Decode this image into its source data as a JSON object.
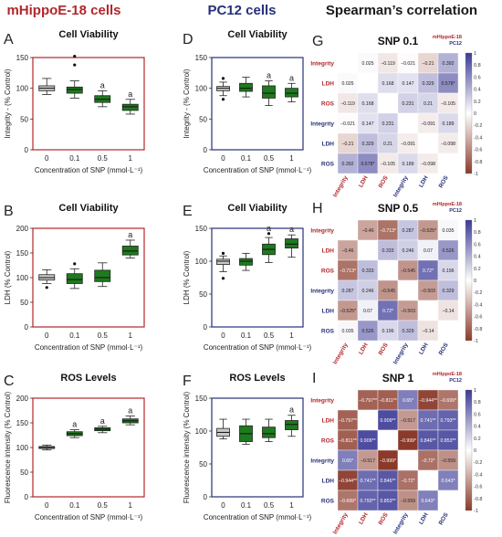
{
  "figure": {
    "col_titles": [
      {
        "text": "mHippoE-18 cells",
        "color": "#b3262b"
      },
      {
        "text": "PC12 cells",
        "color": "#26307a"
      },
      {
        "text": "Spearman’s correlation",
        "color": "#1a1a1a"
      }
    ]
  },
  "colors": {
    "mhippo": "#b3262b",
    "pc12": "#26307a",
    "control_box": "#c8c8c8",
    "treatment_box": "#1e7a1e",
    "heat_neg": "#8b3a2a",
    "heat_pos": "#3b3a96"
  },
  "chart_data": [
    {
      "type": "box",
      "panel": "A",
      "title": "Cell Viability",
      "ylabel": "Integrity - (% Control)",
      "xlabel": "Concentration of SNP (mmol·L⁻¹)",
      "categories": [
        "0",
        "0.1",
        "0.5",
        "1"
      ],
      "ylim": [
        0,
        150
      ],
      "yticks": [
        0,
        50,
        100,
        150
      ],
      "frame": "mhippo",
      "boxes": [
        {
          "min": 90,
          "q1": 96,
          "median": 100,
          "q3": 104,
          "max": 116,
          "outliers": []
        },
        {
          "min": 84,
          "q1": 92,
          "median": 98,
          "q3": 102,
          "max": 112,
          "outliers": [
            138,
            152
          ]
        },
        {
          "min": 70,
          "q1": 77,
          "median": 82,
          "q3": 88,
          "max": 96,
          "outliers": []
        },
        {
          "min": 58,
          "q1": 64,
          "median": 70,
          "q3": 74,
          "max": 82,
          "outliers": []
        }
      ],
      "annotations": [
        "",
        "",
        "a",
        "a"
      ]
    },
    {
      "type": "box",
      "panel": "D",
      "title": "Cell Viability",
      "ylabel": "Integrity - (% Control)",
      "xlabel": "Concentration of SNP (mmol·L⁻¹)",
      "categories": [
        "0",
        "0.1",
        "0.5",
        "1"
      ],
      "ylim": [
        0,
        150
      ],
      "yticks": [
        0,
        50,
        100,
        150
      ],
      "frame": "pc12",
      "boxes": [
        {
          "min": 88,
          "q1": 96,
          "median": 100,
          "q3": 103,
          "max": 110,
          "outliers": [
            82,
            116
          ]
        },
        {
          "min": 86,
          "q1": 95,
          "median": 100,
          "q3": 108,
          "max": 118,
          "outliers": []
        },
        {
          "min": 72,
          "q1": 84,
          "median": 92,
          "q3": 104,
          "max": 112,
          "outliers": []
        },
        {
          "min": 78,
          "q1": 86,
          "median": 92,
          "q3": 100,
          "max": 108,
          "outliers": []
        }
      ],
      "annotations": [
        "",
        "",
        "a",
        "a"
      ]
    },
    {
      "type": "box",
      "panel": "B",
      "title": "Cell Viability",
      "ylabel": "LDH (% Control)",
      "xlabel": "Concentration of SNP (mmol·L⁻¹)",
      "categories": [
        "0",
        "0.1",
        "0.5",
        "1"
      ],
      "ylim": [
        0,
        200
      ],
      "yticks": [
        0,
        50,
        100,
        150,
        200
      ],
      "frame": "mhippo",
      "boxes": [
        {
          "min": 88,
          "q1": 95,
          "median": 100,
          "q3": 106,
          "max": 116,
          "outliers": [
            80
          ]
        },
        {
          "min": 78,
          "q1": 88,
          "median": 96,
          "q3": 108,
          "max": 118,
          "outliers": [
            128
          ]
        },
        {
          "min": 82,
          "q1": 92,
          "median": 100,
          "q3": 115,
          "max": 130,
          "outliers": []
        },
        {
          "min": 140,
          "q1": 146,
          "median": 154,
          "q3": 164,
          "max": 176,
          "outliers": []
        }
      ],
      "annotations": [
        "",
        "",
        "",
        "a"
      ]
    },
    {
      "type": "box",
      "panel": "E",
      "title": "Cell Viability",
      "ylabel": "LDH (% Control)",
      "xlabel": "Concentration of SNP (mmol·L⁻¹)",
      "categories": [
        "0",
        "0.1",
        "0.5",
        "1"
      ],
      "ylim": [
        0,
        150
      ],
      "yticks": [
        0,
        50,
        100,
        150
      ],
      "frame": "pc12",
      "boxes": [
        {
          "min": 84,
          "q1": 95,
          "median": 100,
          "q3": 103,
          "max": 108,
          "outliers": [
            74,
            112
          ]
        },
        {
          "min": 86,
          "q1": 94,
          "median": 100,
          "q3": 104,
          "max": 112,
          "outliers": []
        },
        {
          "min": 98,
          "q1": 110,
          "median": 118,
          "q3": 126,
          "max": 136,
          "outliers": [
            142
          ]
        },
        {
          "min": 106,
          "q1": 120,
          "median": 126,
          "q3": 134,
          "max": 140,
          "outliers": []
        }
      ],
      "annotations": [
        "",
        "",
        "a",
        "a"
      ]
    },
    {
      "type": "box",
      "panel": "C",
      "title": "ROS Levels",
      "ylabel": "Fluorescence intensity (% Control)",
      "xlabel": "Concentration of SNP (mmol·L⁻¹)",
      "categories": [
        "0",
        "0.1",
        "0.5",
        "1"
      ],
      "ylim": [
        0,
        200
      ],
      "yticks": [
        0,
        50,
        100,
        150,
        200
      ],
      "frame": "mhippo",
      "boxes": [
        {
          "min": 95,
          "q1": 98,
          "median": 100,
          "q3": 102,
          "max": 105,
          "outliers": []
        },
        {
          "min": 120,
          "q1": 124,
          "median": 128,
          "q3": 132,
          "max": 136,
          "outliers": []
        },
        {
          "min": 130,
          "q1": 134,
          "median": 137,
          "q3": 140,
          "max": 143,
          "outliers": []
        },
        {
          "min": 146,
          "q1": 150,
          "median": 154,
          "q3": 158,
          "max": 164,
          "outliers": []
        }
      ],
      "annotations": [
        "",
        "a",
        "a",
        "a"
      ]
    },
    {
      "type": "box",
      "panel": "F",
      "title": "ROS Levels",
      "ylabel": "Fluorescence intensity (% Control)",
      "xlabel": "Concentration of SNP (mmol·L⁻¹)",
      "categories": [
        "0",
        "0.1",
        "0.5",
        "1"
      ],
      "ylim": [
        0,
        150
      ],
      "yticks": [
        0,
        50,
        100,
        150
      ],
      "frame": "pc12",
      "boxes": [
        {
          "min": 88,
          "q1": 92,
          "median": 98,
          "q3": 104,
          "max": 118,
          "outliers": []
        },
        {
          "min": 80,
          "q1": 84,
          "median": 96,
          "q3": 108,
          "max": 118,
          "outliers": []
        },
        {
          "min": 84,
          "q1": 90,
          "median": 96,
          "q3": 106,
          "max": 118,
          "outliers": []
        },
        {
          "min": 92,
          "q1": 102,
          "median": 110,
          "q3": 116,
          "max": 124,
          "outliers": []
        }
      ],
      "annotations": [
        "",
        "",
        "",
        "a"
      ]
    },
    {
      "type": "heatmap",
      "panel": "G",
      "title": "SNP 0.1",
      "legend": [
        "mHippoE-18",
        "PC12"
      ],
      "labels": [
        "Integrity",
        "LDH",
        "ROS",
        "Integrity",
        "LDH",
        "ROS"
      ],
      "values": [
        [
          1,
          0.025,
          -0.119,
          -0.021,
          -0.21,
          0.392
        ],
        [
          0.025,
          1,
          0.168,
          0.147,
          0.329,
          0.578
        ],
        [
          -0.119,
          0.168,
          1,
          0.231,
          0.21,
          -0.105
        ],
        [
          -0.021,
          0.147,
          0.231,
          1,
          -0.091,
          0.189
        ],
        [
          -0.21,
          0.329,
          0.21,
          -0.091,
          1,
          -0.098
        ],
        [
          0.392,
          0.578,
          -0.105,
          0.189,
          -0.098,
          1
        ]
      ],
      "text": [
        [
          "",
          "0.025",
          "−0.119",
          "−0.021",
          "−0.21",
          "0.392"
        ],
        [
          "0.025",
          "",
          "0.168",
          "0.147",
          "0.329",
          "0.578*"
        ],
        [
          "−0.119",
          "0.168",
          "",
          "0.231",
          "0.21",
          "−0.105"
        ],
        [
          "−0.021",
          "0.147",
          "0.231",
          "",
          "−0.091",
          "0.189"
        ],
        [
          "−0.21",
          "0.329",
          "0.21",
          "−0.091",
          "",
          "−0.098"
        ],
        [
          "0.392",
          "0.578*",
          "−0.105",
          "0.189",
          "−0.098",
          ""
        ]
      ],
      "colorbar_ticks": [
        "1",
        "0.8",
        "0.6",
        "0.4",
        "0.2",
        "0",
        "-0.2",
        "-0.4",
        "-0.6",
        "-0.8",
        "-1"
      ]
    },
    {
      "type": "heatmap",
      "panel": "H",
      "title": "SNP 0.5",
      "legend": [
        "mHippoE-18",
        "PC12"
      ],
      "labels": [
        "Integrity",
        "LDH",
        "ROS",
        "Integrity",
        "LDH",
        "ROS"
      ],
      "values": [
        [
          1,
          -0.46,
          -0.713,
          0.287,
          -0.525,
          0.035
        ],
        [
          -0.46,
          1,
          0.333,
          0.246,
          0.07,
          0.526
        ],
        [
          -0.713,
          0.333,
          1,
          -0.545,
          0.72,
          0.196
        ],
        [
          0.287,
          0.246,
          -0.545,
          1,
          -0.503,
          0.329
        ],
        [
          -0.525,
          0.07,
          0.72,
          -0.503,
          1,
          -0.14
        ],
        [
          0.035,
          0.526,
          0.196,
          0.329,
          -0.14,
          1
        ]
      ],
      "text": [
        [
          "",
          "−0.46",
          "−0.713*",
          "0.287",
          "−0.525*",
          "0.035"
        ],
        [
          "−0.46",
          "",
          "0.333",
          "0.246",
          "0.07",
          "0.526"
        ],
        [
          "−0.713*",
          "0.333",
          "",
          "−0.545",
          "0.72*",
          "0.196"
        ],
        [
          "0.287",
          "0.246",
          "−0.545",
          "",
          "−0.503",
          "0.329"
        ],
        [
          "−0.525*",
          "0.07",
          "0.72*",
          "−0.503",
          "",
          "−0.14"
        ],
        [
          "0.035",
          "0.526",
          "0.196",
          "0.329",
          "−0.14",
          ""
        ]
      ],
      "colorbar_ticks": [
        "1",
        "0.8",
        "0.6",
        "0.4",
        "0.2",
        "0",
        "-0.2",
        "-0.4",
        "-0.6",
        "-0.8",
        "-1"
      ]
    },
    {
      "type": "heatmap",
      "panel": "I",
      "title": "SNP 1",
      "legend": [
        "mHippoE-18",
        "PC12"
      ],
      "labels": [
        "Integrity",
        "LDH",
        "ROS",
        "Integrity",
        "LDH",
        "ROS"
      ],
      "values": [
        [
          1,
          -0.797,
          -0.811,
          0.65,
          -0.944,
          -0.699
        ],
        [
          -0.797,
          1,
          0.909,
          -0.517,
          0.741,
          0.793
        ],
        [
          -0.811,
          0.909,
          1,
          -0.999,
          0.846,
          0.853
        ],
        [
          0.65,
          -0.517,
          -0.999,
          1,
          -0.72,
          -0.559
        ],
        [
          -0.944,
          0.741,
          0.846,
          -0.72,
          1,
          0.643
        ],
        [
          -0.699,
          0.793,
          0.853,
          -0.559,
          0.643,
          1
        ]
      ],
      "text": [
        [
          "",
          "−0.797**",
          "−0.811**",
          "0.65*",
          "−0.944**",
          "−0.699*"
        ],
        [
          "−0.797**",
          "",
          "0.909**",
          "−0.517",
          "0.741**",
          "0.793**"
        ],
        [
          "−0.811**",
          "0.909**",
          "",
          "−0.999*",
          "0.846**",
          "0.853**"
        ],
        [
          "0.65*",
          "−0.517",
          "−0.999*",
          "",
          "−0.72*",
          "−0.559"
        ],
        [
          "−0.944**",
          "0.741**",
          "0.846**",
          "−0.72*",
          "",
          "0.643*"
        ],
        [
          "−0.699*",
          "0.793**",
          "0.853**",
          "−0.559",
          "0.643*",
          ""
        ]
      ],
      "colorbar_ticks": [
        "1",
        "0.8",
        "0.6",
        "0.4",
        "0.2",
        "0",
        "-0.2",
        "-0.4",
        "-0.6",
        "-0.8",
        "-1"
      ]
    }
  ]
}
